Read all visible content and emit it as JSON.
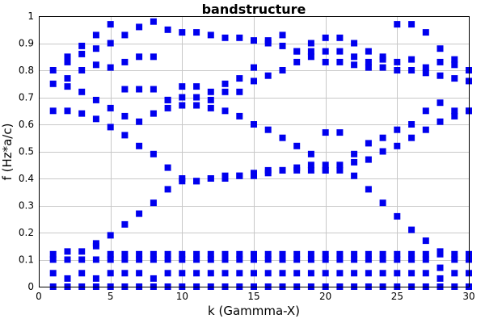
{
  "chart_data": {
    "type": "scatter",
    "title": "bandstructure",
    "xlabel": "k (Gammma-X)",
    "ylabel": "f (Hz*a/c)",
    "xlim": [
      0,
      30
    ],
    "ylim": [
      0,
      1
    ],
    "xticks": [
      0,
      5,
      10,
      15,
      20,
      25,
      30
    ],
    "yticks": [
      0,
      0.1,
      0.2,
      0.3,
      0.4,
      0.5,
      0.6,
      0.7,
      0.8,
      0.9,
      1
    ],
    "grid": true,
    "marker": "square",
    "marker_color": "#0000ee",
    "series": [
      {
        "values": [
          [
            1,
            0
          ],
          [
            2,
            0
          ],
          [
            3,
            0
          ],
          [
            4,
            0
          ],
          [
            5,
            0
          ],
          [
            6,
            0
          ],
          [
            7,
            0
          ],
          [
            8,
            0
          ],
          [
            9,
            0
          ],
          [
            10,
            0
          ],
          [
            11,
            0
          ],
          [
            12,
            0
          ],
          [
            13,
            0
          ],
          [
            14,
            0
          ],
          [
            15,
            0
          ],
          [
            16,
            0
          ],
          [
            17,
            0
          ],
          [
            18,
            0
          ],
          [
            19,
            0
          ],
          [
            20,
            0
          ],
          [
            21,
            0
          ],
          [
            22,
            0
          ],
          [
            23,
            0
          ],
          [
            24,
            0
          ],
          [
            25,
            0
          ],
          [
            26,
            0
          ],
          [
            27,
            0
          ],
          [
            28,
            0
          ],
          [
            29,
            0
          ],
          [
            30,
            0
          ]
        ]
      },
      {
        "values": [
          [
            1,
            0.05
          ],
          [
            2,
            0.03
          ],
          [
            3,
            0.05
          ],
          [
            4,
            0.03
          ],
          [
            5,
            0.05
          ],
          [
            6,
            0.05
          ],
          [
            7,
            0.05
          ],
          [
            8,
            0.03
          ],
          [
            9,
            0.05
          ],
          [
            10,
            0.05
          ],
          [
            11,
            0.05
          ],
          [
            12,
            0.05
          ],
          [
            13,
            0.05
          ],
          [
            14,
            0.05
          ],
          [
            15,
            0.05
          ],
          [
            16,
            0.05
          ],
          [
            17,
            0.05
          ],
          [
            18,
            0.05
          ],
          [
            19,
            0.05
          ],
          [
            20,
            0.05
          ],
          [
            21,
            0.05
          ],
          [
            22,
            0.05
          ],
          [
            23,
            0.05
          ],
          [
            24,
            0.05
          ],
          [
            25,
            0.05
          ],
          [
            26,
            0.05
          ],
          [
            27,
            0.05
          ],
          [
            28,
            0.03
          ],
          [
            29,
            0.05
          ],
          [
            30,
            0.05
          ]
        ]
      },
      {
        "values": [
          [
            1,
            0.1
          ],
          [
            2,
            0.1
          ],
          [
            3,
            0.1
          ],
          [
            4,
            0.1
          ],
          [
            5,
            0.1
          ],
          [
            6,
            0.1
          ],
          [
            7,
            0.1
          ],
          [
            8,
            0.1
          ],
          [
            9,
            0.1
          ],
          [
            10,
            0.1
          ],
          [
            11,
            0.1
          ],
          [
            12,
            0.1
          ],
          [
            13,
            0.1
          ],
          [
            14,
            0.1
          ],
          [
            15,
            0.1
          ],
          [
            16,
            0.1
          ],
          [
            17,
            0.1
          ],
          [
            18,
            0.1
          ],
          [
            19,
            0.1
          ],
          [
            20,
            0.1
          ],
          [
            21,
            0.1
          ],
          [
            22,
            0.1
          ],
          [
            23,
            0.1
          ],
          [
            24,
            0.1
          ],
          [
            25,
            0.1
          ],
          [
            26,
            0.1
          ],
          [
            27,
            0.1
          ],
          [
            28,
            0.07
          ],
          [
            29,
            0.1
          ],
          [
            30,
            0.1
          ]
        ]
      },
      {
        "values": [
          [
            1,
            0.12
          ],
          [
            2,
            0.13
          ],
          [
            3,
            0.13
          ],
          [
            4,
            0.15
          ],
          [
            5,
            0.12
          ],
          [
            6,
            0.12
          ],
          [
            7,
            0.12
          ],
          [
            8,
            0.12
          ],
          [
            9,
            0.12
          ],
          [
            10,
            0.12
          ],
          [
            11,
            0.12
          ],
          [
            12,
            0.12
          ],
          [
            13,
            0.12
          ],
          [
            14,
            0.12
          ],
          [
            15,
            0.12
          ],
          [
            16,
            0.12
          ],
          [
            17,
            0.12
          ],
          [
            18,
            0.12
          ],
          [
            19,
            0.12
          ],
          [
            20,
            0.12
          ],
          [
            21,
            0.12
          ],
          [
            22,
            0.12
          ],
          [
            23,
            0.12
          ],
          [
            24,
            0.12
          ],
          [
            25,
            0.12
          ],
          [
            26,
            0.12
          ],
          [
            27,
            0.12
          ],
          [
            28,
            0.12
          ],
          [
            29,
            0.12
          ],
          [
            30,
            0.12
          ]
        ]
      },
      {
        "values": [
          [
            4,
            0.16
          ],
          [
            5,
            0.19
          ],
          [
            6,
            0.23
          ],
          [
            7,
            0.27
          ],
          [
            8,
            0.31
          ],
          [
            9,
            0.36
          ],
          [
            10,
            0.39
          ],
          [
            11,
            0.39
          ],
          [
            12,
            0.4
          ],
          [
            13,
            0.41
          ],
          [
            14,
            0.41
          ],
          [
            15,
            0.42
          ],
          [
            16,
            0.42
          ],
          [
            17,
            0.43
          ],
          [
            18,
            0.44
          ],
          [
            19,
            0.45
          ],
          [
            20,
            0.45
          ],
          [
            21,
            0.45
          ],
          [
            22,
            0.46
          ],
          [
            23,
            0.47
          ],
          [
            24,
            0.5
          ],
          [
            25,
            0.52
          ],
          [
            26,
            0.55
          ],
          [
            27,
            0.58
          ],
          [
            28,
            0.61
          ],
          [
            29,
            0.63
          ],
          [
            30,
            0.65
          ]
        ]
      },
      {
        "values": [
          [
            20,
            0.43
          ],
          [
            21,
            0.43
          ],
          [
            22,
            0.41
          ],
          [
            23,
            0.36
          ],
          [
            24,
            0.31
          ],
          [
            25,
            0.26
          ],
          [
            26,
            0.21
          ],
          [
            27,
            0.17
          ],
          [
            28,
            0.13
          ]
        ]
      },
      {
        "values": [
          [
            1,
            0.65
          ],
          [
            2,
            0.65
          ],
          [
            3,
            0.64
          ],
          [
            4,
            0.62
          ],
          [
            5,
            0.59
          ],
          [
            6,
            0.56
          ],
          [
            7,
            0.52
          ],
          [
            8,
            0.49
          ],
          [
            9,
            0.44
          ],
          [
            10,
            0.4
          ],
          [
            11,
            0.39
          ],
          [
            12,
            0.4
          ],
          [
            13,
            0.4
          ],
          [
            14,
            0.41
          ],
          [
            15,
            0.41
          ],
          [
            16,
            0.43
          ],
          [
            17,
            0.43
          ],
          [
            18,
            0.43
          ],
          [
            19,
            0.43
          ],
          [
            20,
            0.43
          ]
        ]
      },
      {
        "values": [
          [
            1,
            0.75
          ],
          [
            2,
            0.74
          ],
          [
            3,
            0.72
          ],
          [
            4,
            0.69
          ],
          [
            5,
            0.66
          ],
          [
            6,
            0.63
          ],
          [
            7,
            0.61
          ],
          [
            8,
            0.64
          ],
          [
            9,
            0.66
          ],
          [
            10,
            0.67
          ],
          [
            11,
            0.67
          ],
          [
            12,
            0.66
          ],
          [
            13,
            0.65
          ],
          [
            14,
            0.63
          ],
          [
            15,
            0.6
          ],
          [
            16,
            0.58
          ],
          [
            17,
            0.55
          ],
          [
            18,
            0.52
          ],
          [
            19,
            0.49
          ],
          [
            20,
            0.57
          ],
          [
            21,
            0.57
          ],
          [
            22,
            0.49
          ],
          [
            23,
            0.53
          ],
          [
            24,
            0.55
          ],
          [
            25,
            0.58
          ],
          [
            26,
            0.6
          ],
          [
            27,
            0.65
          ],
          [
            28,
            0.68
          ],
          [
            29,
            0.65
          ],
          [
            30,
            0.65
          ]
        ]
      },
      {
        "values": [
          [
            1,
            0.8
          ],
          [
            2,
            0.83
          ],
          [
            3,
            0.86
          ],
          [
            4,
            0.88
          ],
          [
            5,
            0.9
          ],
          [
            6,
            0.93
          ],
          [
            7,
            0.96
          ],
          [
            8,
            0.98
          ],
          [
            9,
            0.95
          ],
          [
            10,
            0.94
          ],
          [
            11,
            0.94
          ],
          [
            12,
            0.93
          ],
          [
            13,
            0.92
          ],
          [
            14,
            0.92
          ],
          [
            15,
            0.91
          ],
          [
            16,
            0.9
          ],
          [
            17,
            0.89
          ],
          [
            18,
            0.87
          ],
          [
            19,
            0.85
          ],
          [
            20,
            0.83
          ],
          [
            21,
            0.83
          ],
          [
            22,
            0.82
          ],
          [
            23,
            0.81
          ],
          [
            24,
            0.81
          ],
          [
            25,
            0.8
          ],
          [
            26,
            0.8
          ],
          [
            27,
            0.79
          ],
          [
            28,
            0.78
          ],
          [
            29,
            0.77
          ],
          [
            30,
            0.76
          ]
        ]
      },
      {
        "values": [
          [
            2,
            0.85
          ],
          [
            3,
            0.89
          ],
          [
            4,
            0.93
          ],
          [
            5,
            0.97
          ],
          [
            6,
            0.83
          ],
          [
            7,
            0.85
          ],
          [
            8,
            0.85
          ],
          [
            9,
            0.69
          ],
          [
            10,
            0.74
          ],
          [
            11,
            0.74
          ],
          [
            12,
            0.72
          ],
          [
            13,
            0.75
          ],
          [
            14,
            0.77
          ],
          [
            15,
            0.81
          ],
          [
            16,
            0.78
          ],
          [
            17,
            0.8
          ],
          [
            18,
            0.83
          ],
          [
            19,
            0.87
          ],
          [
            20,
            0.87
          ],
          [
            21,
            0.87
          ],
          [
            22,
            0.85
          ],
          [
            23,
            0.83
          ],
          [
            24,
            0.84
          ],
          [
            25,
            0.83
          ],
          [
            26,
            0.84
          ],
          [
            27,
            0.81
          ],
          [
            28,
            0.83
          ],
          [
            29,
            0.82
          ],
          [
            30,
            0.8
          ]
        ]
      },
      {
        "values": [
          [
            2,
            0.77
          ],
          [
            3,
            0.8
          ],
          [
            4,
            0.82
          ],
          [
            5,
            0.81
          ],
          [
            6,
            0.73
          ],
          [
            7,
            0.73
          ],
          [
            8,
            0.73
          ],
          [
            9,
            0.69
          ],
          [
            10,
            0.7
          ],
          [
            11,
            0.7
          ],
          [
            12,
            0.69
          ],
          [
            13,
            0.72
          ],
          [
            14,
            0.72
          ],
          [
            15,
            0.76
          ],
          [
            16,
            0.91
          ],
          [
            17,
            0.93
          ],
          [
            18,
            0.87
          ],
          [
            19,
            0.9
          ],
          [
            20,
            0.92
          ],
          [
            21,
            0.92
          ],
          [
            22,
            0.9
          ],
          [
            23,
            0.87
          ],
          [
            24,
            0.85
          ],
          [
            25,
            0.97
          ],
          [
            26,
            0.97
          ],
          [
            27,
            0.94
          ],
          [
            28,
            0.88
          ],
          [
            29,
            0.84
          ],
          [
            30,
            0.8
          ]
        ]
      }
    ]
  }
}
